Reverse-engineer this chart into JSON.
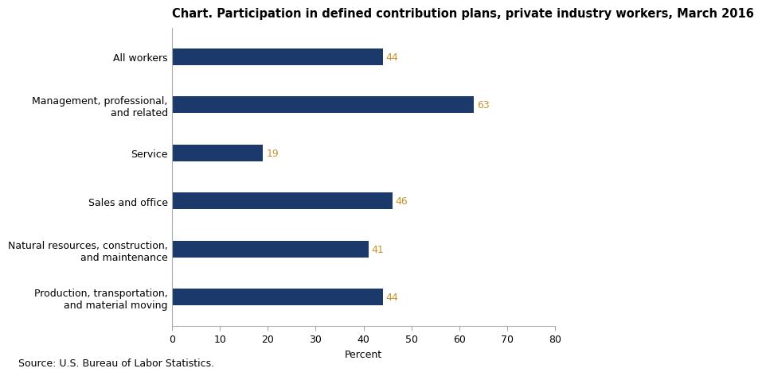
{
  "title": "Chart. Participation in defined contribution plans, private industry workers, March 2016",
  "categories": [
    "Production, transportation,\nand material moving",
    "Natural resources, construction,\nand maintenance",
    "Sales and office",
    "Service",
    "Management, professional,\nand related",
    "All workers"
  ],
  "values": [
    44,
    41,
    46,
    19,
    63,
    44
  ],
  "bar_color": "#1B3A6B",
  "value_color": "#C8922A",
  "xlabel": "Percent",
  "xlim": [
    0,
    80
  ],
  "xticks": [
    0,
    10,
    20,
    30,
    40,
    50,
    60,
    70,
    80
  ],
  "source_text": "Source: U.S. Bureau of Labor Statistics.",
  "title_fontsize": 10.5,
  "label_fontsize": 9,
  "tick_fontsize": 9,
  "value_fontsize": 9,
  "source_fontsize": 9,
  "bar_height": 0.35
}
